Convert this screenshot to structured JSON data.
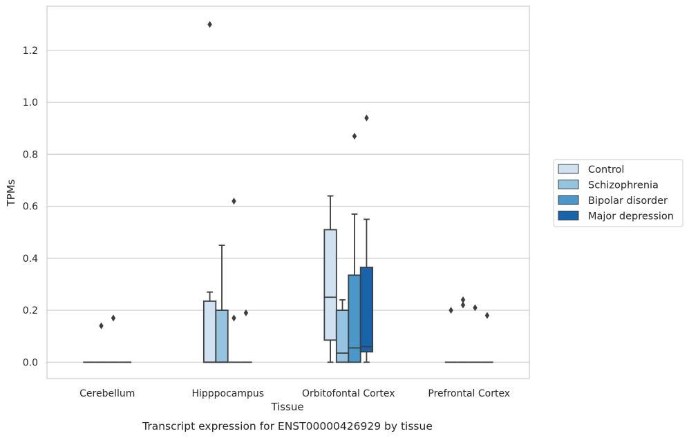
{
  "chart_data": {
    "type": "box",
    "title": "",
    "caption": "Transcript expression for ENST00000426929 by tissue",
    "xlabel": "Tissue",
    "ylabel": "TPMs",
    "ylim": [
      -0.063,
      1.37
    ],
    "yticks": [
      0.0,
      0.2,
      0.4,
      0.6,
      0.8,
      1.0,
      1.2
    ],
    "ytick_labels": [
      "0.0",
      "0.2",
      "0.4",
      "0.6",
      "0.8",
      "1.0",
      "1.2"
    ],
    "grid": "horizontal",
    "legend_position": "right",
    "categories": [
      "Cerebellum",
      "Hipppocampus",
      "Orbitofontal Cortex",
      "Prefrontal Cortex"
    ],
    "series": [
      {
        "name": "Control",
        "color": "#d0e1f2",
        "boxes": [
          {
            "q1": 0.0,
            "median": 0.0,
            "q3": 0.0,
            "whisker_low": 0.0,
            "whisker_high": 0.0,
            "outliers": []
          },
          {
            "q1": 0.0,
            "median": 0.0,
            "q3": 0.235,
            "whisker_low": 0.0,
            "whisker_high": 0.27,
            "outliers": [
              1.3
            ]
          },
          {
            "q1": 0.085,
            "median": 0.25,
            "q3": 0.51,
            "whisker_low": 0.0,
            "whisker_high": 0.64,
            "outliers": []
          },
          {
            "q1": 0.0,
            "median": 0.0,
            "q3": 0.0,
            "whisker_low": 0.0,
            "whisker_high": 0.0,
            "outliers": [
              0.2
            ]
          }
        ]
      },
      {
        "name": "Schizophrenia",
        "color": "#94c4df",
        "boxes": [
          {
            "q1": 0.0,
            "median": 0.0,
            "q3": 0.0,
            "whisker_low": 0.0,
            "whisker_high": 0.0,
            "outliers": [
              0.14
            ]
          },
          {
            "q1": 0.0,
            "median": 0.0,
            "q3": 0.2,
            "whisker_low": 0.0,
            "whisker_high": 0.45,
            "outliers": []
          },
          {
            "q1": 0.0,
            "median": 0.035,
            "q3": 0.2,
            "whisker_low": 0.0,
            "whisker_high": 0.24,
            "outliers": []
          },
          {
            "q1": 0.0,
            "median": 0.0,
            "q3": 0.0,
            "whisker_low": 0.0,
            "whisker_high": 0.0,
            "outliers": [
              0.24,
              0.22
            ]
          }
        ]
      },
      {
        "name": "Bipolar disorder",
        "color": "#4a98c9",
        "boxes": [
          {
            "q1": 0.0,
            "median": 0.0,
            "q3": 0.0,
            "whisker_low": 0.0,
            "whisker_high": 0.0,
            "outliers": [
              0.17
            ]
          },
          {
            "q1": 0.0,
            "median": 0.0,
            "q3": 0.0,
            "whisker_low": 0.0,
            "whisker_high": 0.0,
            "outliers": [
              0.62,
              0.17
            ]
          },
          {
            "q1": 0.0,
            "median": 0.055,
            "q3": 0.335,
            "whisker_low": 0.0,
            "whisker_high": 0.57,
            "outliers": [
              0.87
            ]
          },
          {
            "q1": 0.0,
            "median": 0.0,
            "q3": 0.0,
            "whisker_low": 0.0,
            "whisker_high": 0.0,
            "outliers": [
              0.21
            ]
          }
        ]
      },
      {
        "name": "Major depression",
        "color": "#1764ab",
        "boxes": [
          {
            "q1": 0.0,
            "median": 0.0,
            "q3": 0.0,
            "whisker_low": 0.0,
            "whisker_high": 0.0,
            "outliers": []
          },
          {
            "q1": 0.0,
            "median": 0.0,
            "q3": 0.0,
            "whisker_low": 0.0,
            "whisker_high": 0.0,
            "outliers": [
              0.19
            ]
          },
          {
            "q1": 0.04,
            "median": 0.06,
            "q3": 0.365,
            "whisker_low": 0.0,
            "whisker_high": 0.55,
            "outliers": [
              0.94
            ]
          },
          {
            "q1": 0.0,
            "median": 0.0,
            "q3": 0.0,
            "whisker_low": 0.0,
            "whisker_high": 0.0,
            "outliers": [
              0.18
            ]
          }
        ]
      }
    ]
  }
}
